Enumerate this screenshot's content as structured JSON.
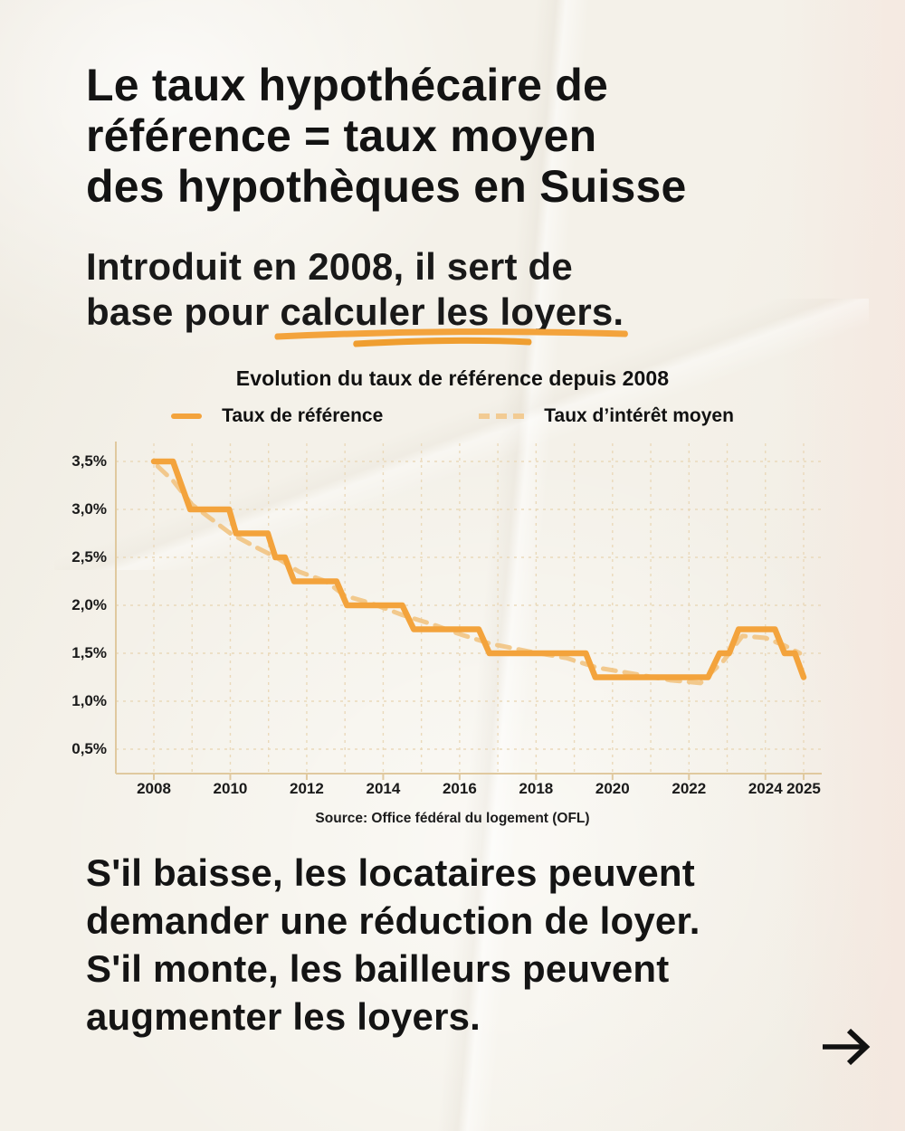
{
  "page": {
    "bg_color": "#f4f1e9",
    "accent_color": "#f3a33c",
    "text_color": "#161616"
  },
  "header": {
    "title_lines": [
      "Le taux hypothécaire de",
      "référence = taux moyen",
      "des hypothèques en Suisse"
    ]
  },
  "intro": {
    "line1": "Introduit en 2008, il sert de",
    "line2_prefix": "base pour ",
    "line2_highlight": "calculer les loyers."
  },
  "chart_data": {
    "type": "line",
    "title": "Evolution du taux de référence depuis 2008",
    "source": "Source: Office fédéral du logement (OFL)",
    "grid": true,
    "legend_position": "top",
    "x_range": [
      2007.0,
      2025.5
    ],
    "y_range": [
      0.25,
      3.7
    ],
    "x_tick_values": [
      2008,
      2010,
      2012,
      2014,
      2016,
      2018,
      2020,
      2022,
      2024,
      2025
    ],
    "x_tick_labels": [
      "2008",
      "2010",
      "2012",
      "2014",
      "2016",
      "2018",
      "2020",
      "2022",
      "2024",
      "2025"
    ],
    "x_grid_years": [
      2008,
      2009,
      2010,
      2011,
      2012,
      2013,
      2014,
      2015,
      2016,
      2017,
      2018,
      2019,
      2020,
      2021,
      2022,
      2023,
      2024,
      2025
    ],
    "y_tick_values": [
      0.5,
      1.0,
      1.5,
      2.0,
      2.5,
      3.0,
      3.5
    ],
    "y_tick_labels": [
      "0,5%",
      "1,0%",
      "1,5%",
      "2,0%",
      "2,5%",
      "3,0%",
      "3,5%"
    ],
    "unit": "%",
    "series": [
      {
        "name": "Taux d’intérêt moyen",
        "style": "dashed",
        "color": "#f1c17b",
        "points": [
          [
            2008.1,
            3.45
          ],
          [
            2008.5,
            3.3
          ],
          [
            2009.0,
            3.05
          ],
          [
            2009.5,
            2.9
          ],
          [
            2010.0,
            2.75
          ],
          [
            2010.7,
            2.6
          ],
          [
            2011.2,
            2.5
          ],
          [
            2011.8,
            2.35
          ],
          [
            2012.5,
            2.25
          ],
          [
            2013.0,
            2.1
          ],
          [
            2013.7,
            2.02
          ],
          [
            2014.5,
            1.9
          ],
          [
            2015.3,
            1.8
          ],
          [
            2016.0,
            1.7
          ],
          [
            2016.8,
            1.6
          ],
          [
            2017.8,
            1.52
          ],
          [
            2018.8,
            1.45
          ],
          [
            2019.6,
            1.35
          ],
          [
            2020.5,
            1.29
          ],
          [
            2021.5,
            1.22
          ],
          [
            2022.3,
            1.19
          ],
          [
            2022.9,
            1.42
          ],
          [
            2023.4,
            1.68
          ],
          [
            2024.0,
            1.66
          ],
          [
            2024.5,
            1.58
          ],
          [
            2024.9,
            1.5
          ]
        ]
      },
      {
        "name": "Taux de référence",
        "style": "solid",
        "color": "#f3a33c",
        "points": [
          [
            2008.0,
            3.5
          ],
          [
            2008.5,
            3.5
          ],
          [
            2008.95,
            3.0
          ],
          [
            2009.97,
            3.0
          ],
          [
            2010.15,
            2.75
          ],
          [
            2010.98,
            2.75
          ],
          [
            2011.18,
            2.5
          ],
          [
            2011.43,
            2.5
          ],
          [
            2011.67,
            2.25
          ],
          [
            2012.78,
            2.25
          ],
          [
            2013.05,
            2.0
          ],
          [
            2014.5,
            2.0
          ],
          [
            2014.8,
            1.75
          ],
          [
            2016.5,
            1.75
          ],
          [
            2016.78,
            1.5
          ],
          [
            2019.3,
            1.5
          ],
          [
            2019.55,
            1.25
          ],
          [
            2022.5,
            1.25
          ],
          [
            2022.8,
            1.5
          ],
          [
            2023.05,
            1.5
          ],
          [
            2023.3,
            1.75
          ],
          [
            2024.25,
            1.75
          ],
          [
            2024.5,
            1.5
          ],
          [
            2024.77,
            1.5
          ],
          [
            2025.0,
            1.25
          ]
        ]
      }
    ]
  },
  "body": {
    "lines": [
      "S'il baisse, les locataires peuvent",
      "demander une réduction de loyer.",
      "S'il monte, les bailleurs peuvent",
      "augmenter les loyers."
    ]
  },
  "footer": {
    "next_arrow_icon": "right-arrow"
  }
}
